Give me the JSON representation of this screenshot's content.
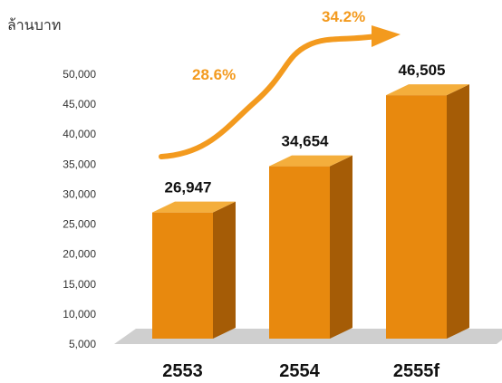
{
  "chart_data": {
    "type": "bar",
    "unit_label": "ล้านบาท",
    "categories": [
      "2553",
      "2554",
      "2555f"
    ],
    "values": [
      26947,
      34654,
      46505
    ],
    "data_labels": [
      "26,947",
      "34,654",
      "46,505"
    ],
    "y_ticks": [
      "5,000",
      "10,000",
      "15,000",
      "20,000",
      "25,000",
      "30,000",
      "35,000",
      "40,000",
      "45,000",
      "50,000"
    ],
    "ylim": [
      5000,
      50000
    ],
    "growth_annotations": [
      "28.6%",
      "34.2%"
    ],
    "legend": "none",
    "grid": false,
    "colors": {
      "bar_front": "#e8890e",
      "bar_side": "#a55c06",
      "bar_top": "#f4ae3c",
      "floor": "#cfcfcf",
      "arrow": "#f39a1e"
    }
  }
}
